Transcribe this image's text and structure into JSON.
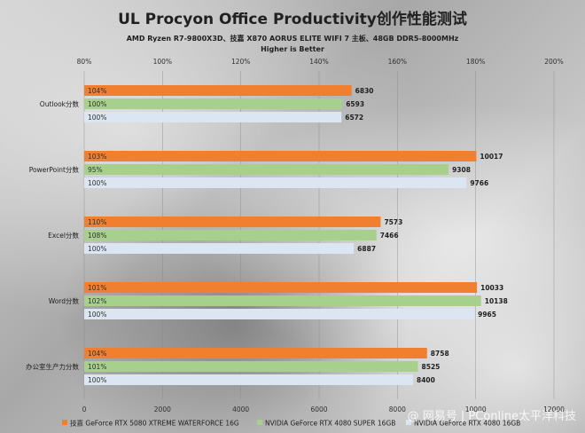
{
  "chart_data": {
    "type": "bar",
    "title": "UL Procyon Office Productivity创作性能测试",
    "subtitle_lines": [
      "AMD Ryzen R7-9800X3D、技嘉 X870 AORUS ELITE WIFI 7 主板、48GB DDR5-8000MHz",
      "Higher is Better"
    ],
    "categories": [
      "Outlook分数",
      "PowerPoint分数",
      "Excel分数",
      "Word分数",
      "办公室生产力分数"
    ],
    "series": [
      {
        "name": "技嘉 GeForce RTX 5080 XTREME WATERFORCE 16G",
        "color": "#f08030",
        "values": [
          6830,
          10017,
          7573,
          10033,
          8758
        ],
        "percent_labels": [
          "104%",
          "103%",
          "110%",
          "101%",
          "104%"
        ]
      },
      {
        "name": "NVIDIA GeForce RTX 4080 SUPER 16GB",
        "color": "#a8d08d",
        "values": [
          6593,
          9308,
          7466,
          10138,
          8525
        ],
        "percent_labels": [
          "100%",
          "95%",
          "108%",
          "102%",
          "101%"
        ]
      },
      {
        "name": "NVIDIA GeForce RTX 4080 16GB",
        "color": "#dce6f2",
        "values": [
          6572,
          9766,
          6887,
          9965,
          8400
        ],
        "percent_labels": [
          "100%",
          "100%",
          "100%",
          "100%",
          "100%"
        ]
      }
    ],
    "x_axis": {
      "min": 0,
      "max": 12000,
      "ticks": [
        "0",
        "2000",
        "4000",
        "6000",
        "8000",
        "10000",
        "12000"
      ]
    },
    "x_axis_top": {
      "min": 0.8,
      "max": 2.0,
      "ticks": [
        "80%",
        "100%",
        "120%",
        "140%",
        "160%",
        "180%",
        "200%"
      ]
    },
    "grid": true,
    "legend_position": "bottom"
  },
  "watermark": "@ 网易号 | PConline太平洋科技"
}
